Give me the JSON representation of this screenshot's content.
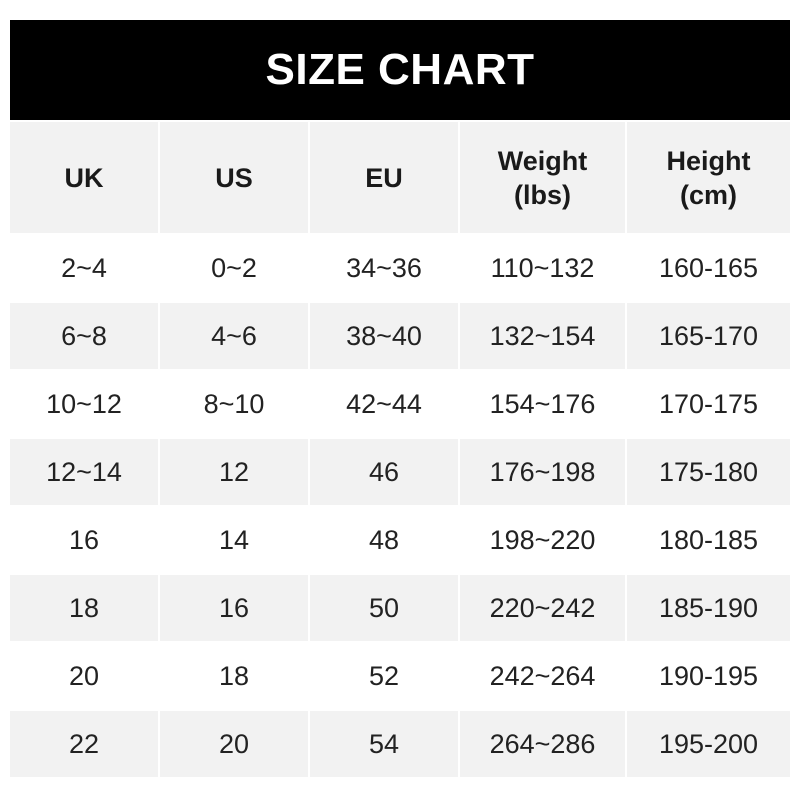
{
  "title": "SIZE CHART",
  "headers": [
    "UK",
    "US",
    "EU",
    "Weight\n(lbs)",
    "Height\n(cm)"
  ],
  "rows": [
    [
      "2~4",
      "0~2",
      "34~36",
      "110~132",
      "160-165"
    ],
    [
      "6~8",
      "4~6",
      "38~40",
      "132~154",
      "165-170"
    ],
    [
      "10~12",
      "8~10",
      "42~44",
      "154~176",
      "170-175"
    ],
    [
      "12~14",
      "12",
      "46",
      "176~198",
      "175-180"
    ],
    [
      "16",
      "14",
      "48",
      "198~220",
      "180-185"
    ],
    [
      "18",
      "16",
      "50",
      "220~242",
      "185-190"
    ],
    [
      "20",
      "18",
      "52",
      "242~264",
      "190-195"
    ],
    [
      "22",
      "20",
      "54",
      "264~286",
      "195-200"
    ]
  ],
  "colors": {
    "title_bg": "#000000",
    "header_bg": "#f2f2f2",
    "stripe_bg": "#f2f2f2",
    "row_bg": "#ffffff"
  }
}
